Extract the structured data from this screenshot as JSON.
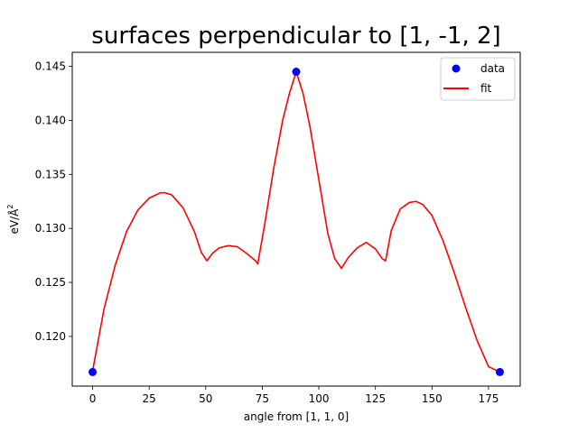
{
  "chart_data": {
    "type": "line",
    "title": "surfaces perpendicular to [1, -1, 2]",
    "xlabel": "angle from [1, 1, 0]",
    "ylabel_base": "eV/",
    "ylabel_unit": "Å",
    "ylabel_exp": "2",
    "xlim": [
      -9,
      189
    ],
    "ylim": [
      0.1154,
      0.1463
    ],
    "xticks": [
      0,
      25,
      50,
      75,
      100,
      125,
      150,
      175
    ],
    "yticks": [
      0.12,
      0.125,
      0.13,
      0.135,
      0.14,
      0.145
    ],
    "ytick_labels": [
      "0.120",
      "0.125",
      "0.130",
      "0.135",
      "0.140",
      "0.145"
    ],
    "legend_position": "upper right",
    "series": [
      {
        "name": "data",
        "kind": "scatter",
        "color": "#0000ff",
        "x": [
          0,
          90,
          180
        ],
        "y": [
          0.1167,
          0.1445,
          0.1167
        ]
      },
      {
        "name": "fit",
        "kind": "line",
        "color": "#ff0000",
        "x": [
          0,
          5,
          10,
          15,
          20,
          25,
          30,
          32,
          35,
          40,
          45,
          48,
          50.5,
          53,
          56,
          60,
          64,
          68,
          72,
          73,
          76,
          80,
          84,
          87,
          90,
          93,
          96,
          100,
          104,
          107,
          110,
          113,
          117,
          121,
          125,
          128,
          129.5,
          132,
          136,
          140,
          143,
          146,
          150,
          155,
          160,
          165,
          170,
          175,
          180
        ],
        "y": [
          0.1168,
          0.1225,
          0.1266,
          0.1297,
          0.1317,
          0.1328,
          0.1333,
          0.1333,
          0.1331,
          0.1319,
          0.1297,
          0.1278,
          0.127,
          0.1277,
          0.1282,
          0.1284,
          0.1283,
          0.1277,
          0.127,
          0.1267,
          0.1303,
          0.1355,
          0.14,
          0.1425,
          0.1445,
          0.1425,
          0.1395,
          0.1345,
          0.1295,
          0.1272,
          0.1263,
          0.1273,
          0.1282,
          0.1287,
          0.1281,
          0.1272,
          0.127,
          0.1298,
          0.1318,
          0.1324,
          0.1325,
          0.1322,
          0.1312,
          0.1288,
          0.1258,
          0.1226,
          0.1196,
          0.1172,
          0.1167
        ]
      }
    ]
  }
}
